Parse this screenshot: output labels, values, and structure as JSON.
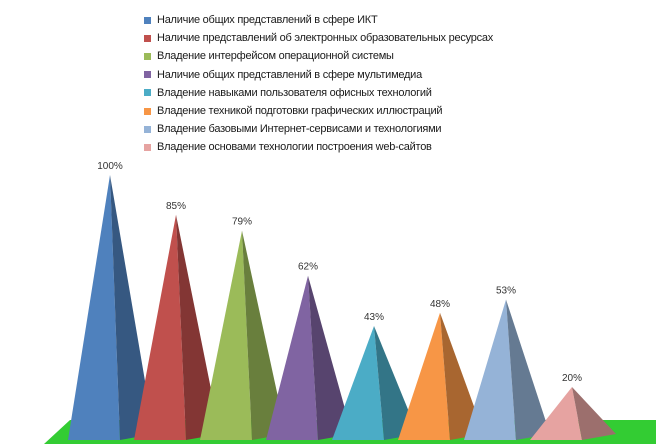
{
  "chart_data": {
    "type": "bar",
    "title": "",
    "xlabel": "",
    "ylabel": "",
    "ylim": [
      0,
      100
    ],
    "grid": false,
    "legend_position": "top",
    "series": [
      {
        "name": "Наличие общих представлений в сфере ИКТ",
        "value": 100,
        "label": "100%",
        "color": "#4f81bd"
      },
      {
        "name": "Наличие представлений об электронных образовательных ресурсах",
        "value": 85,
        "label": "85%",
        "color": "#c0504d"
      },
      {
        "name": "Владение интерфейсом операционной системы",
        "value": 79,
        "label": "79%",
        "color": "#9bbb59"
      },
      {
        "name": "Наличие общих представлений в сфере мультимедиа",
        "value": 62,
        "label": "62%",
        "color": "#8064a2"
      },
      {
        "name": "Владение навыками пользователя офисных технологий",
        "value": 43,
        "label": "43%",
        "color": "#4bacc6"
      },
      {
        "name": "Владение техникой подготовки графических иллюстраций",
        "value": 48,
        "label": "48%",
        "color": "#f79646"
      },
      {
        "name": "Владение базовыми Интернет-сервисами и технологиями",
        "value": 53,
        "label": "53%",
        "color": "#95b3d7"
      },
      {
        "name": "Владение основами технологии построения web-сайтов",
        "value": 20,
        "label": "20%",
        "color": "#e6a3a1"
      }
    ],
    "floor_color": "#33cc33"
  }
}
